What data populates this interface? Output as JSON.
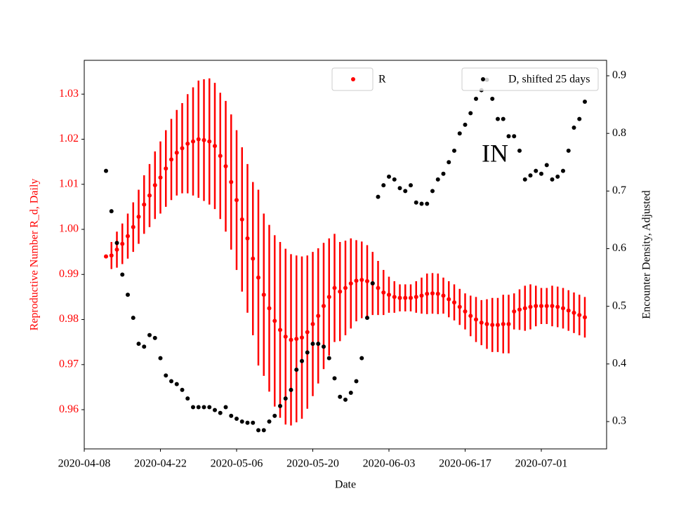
{
  "chart_data": {
    "type": "errorbar-dual-axis",
    "xlabel": "Date",
    "ylabel": "Reproductive Number R_d, Daily",
    "y2label": "Encounter Density, Adjusted",
    "annotation": "IN",
    "x": [
      "2020-04-12",
      "2020-04-13",
      "2020-04-14",
      "2020-04-15",
      "2020-04-16",
      "2020-04-17",
      "2020-04-18",
      "2020-04-19",
      "2020-04-20",
      "2020-04-21",
      "2020-04-22",
      "2020-04-23",
      "2020-04-24",
      "2020-04-25",
      "2020-04-26",
      "2020-04-27",
      "2020-04-28",
      "2020-04-29",
      "2020-04-30",
      "2020-05-01",
      "2020-05-02",
      "2020-05-03",
      "2020-05-04",
      "2020-05-05",
      "2020-05-06",
      "2020-05-07",
      "2020-05-08",
      "2020-05-09",
      "2020-05-10",
      "2020-05-11",
      "2020-05-12",
      "2020-05-13",
      "2020-05-14",
      "2020-05-15",
      "2020-05-16",
      "2020-05-17",
      "2020-05-18",
      "2020-05-19",
      "2020-05-20",
      "2020-05-21",
      "2020-05-22",
      "2020-05-23",
      "2020-05-24",
      "2020-05-25",
      "2020-05-26",
      "2020-05-27",
      "2020-05-28",
      "2020-05-29",
      "2020-05-30",
      "2020-05-31",
      "2020-06-01",
      "2020-06-02",
      "2020-06-03",
      "2020-06-04",
      "2020-06-05",
      "2020-06-06",
      "2020-06-07",
      "2020-06-08",
      "2020-06-09",
      "2020-06-10",
      "2020-06-11",
      "2020-06-12",
      "2020-06-13",
      "2020-06-14",
      "2020-06-15",
      "2020-06-16",
      "2020-06-17",
      "2020-06-18",
      "2020-06-19",
      "2020-06-20",
      "2020-06-21",
      "2020-06-22",
      "2020-06-23",
      "2020-06-24",
      "2020-06-25",
      "2020-06-26",
      "2020-06-27",
      "2020-06-28",
      "2020-06-29",
      "2020-06-30",
      "2020-07-01",
      "2020-07-02",
      "2020-07-03",
      "2020-07-04",
      "2020-07-05",
      "2020-07-06",
      "2020-07-07",
      "2020-07-08",
      "2020-07-09"
    ],
    "xlim": [
      "2020-04-08",
      "2020-07-13"
    ],
    "xticks": [
      "2020-04-08",
      "2020-04-22",
      "2020-05-06",
      "2020-05-20",
      "2020-06-03",
      "2020-06-17",
      "2020-07-01"
    ],
    "ylim": [
      0.9513,
      1.0375
    ],
    "yticks": [
      0.96,
      0.97,
      0.98,
      0.99,
      {
        "value": 1,
        "label": "1.00"
      },
      1.01,
      1.02,
      1.03
    ],
    "y2lim": [
      0.2526,
      0.9268
    ],
    "y2ticks": [
      0.3,
      0.4,
      0.5,
      0.6,
      0.7,
      0.8,
      0.9
    ],
    "ycolor": "#ff0000",
    "series": [
      {
        "name": "R",
        "color": "#ff0000",
        "axis": "y",
        "legend": "upper center",
        "values": [
          0.994,
          0.9942,
          0.9955,
          0.9968,
          0.9985,
          1.0005,
          1.0028,
          1.0055,
          1.0075,
          1.0098,
          1.0115,
          1.0135,
          1.0155,
          1.017,
          1.018,
          1.019,
          1.0195,
          1.02,
          1.0198,
          1.0195,
          1.0185,
          1.0163,
          1.014,
          1.0105,
          1.0065,
          1.0022,
          0.998,
          0.9935,
          0.9893,
          0.9855,
          0.9825,
          0.9797,
          0.9777,
          0.9762,
          0.9755,
          0.9757,
          0.976,
          0.9772,
          0.979,
          0.9808,
          0.983,
          0.985,
          0.987,
          0.9862,
          0.987,
          0.988,
          0.9886,
          0.9888,
          0.9885,
          0.988,
          0.987,
          0.986,
          0.9855,
          0.985,
          0.9848,
          0.9848,
          0.9848,
          0.985,
          0.9853,
          0.9857,
          0.9858,
          0.9857,
          0.9853,
          0.9845,
          0.9838,
          0.9828,
          0.9818,
          0.9808,
          0.98,
          0.9793,
          0.979,
          0.9788,
          0.9788,
          0.979,
          0.979,
          0.9818,
          0.9822,
          0.9825,
          0.9828,
          0.983,
          0.983,
          0.983,
          0.983,
          0.9828,
          0.9825,
          0.982,
          0.9815,
          0.981,
          0.9805
        ],
        "errors": [
          0,
          0.003,
          0.004,
          0.0045,
          0.005,
          0.0055,
          0.006,
          0.0065,
          0.007,
          0.0075,
          0.008,
          0.0085,
          0.009,
          0.0095,
          0.01,
          0.011,
          0.012,
          0.013,
          0.0135,
          0.014,
          0.014,
          0.014,
          0.0145,
          0.015,
          0.0155,
          0.016,
          0.0165,
          0.017,
          0.0195,
          0.018,
          0.0185,
          0.019,
          0.0195,
          0.0195,
          0.019,
          0.0185,
          0.018,
          0.017,
          0.016,
          0.015,
          0.014,
          0.013,
          0.012,
          0.011,
          0.0105,
          0.01,
          0.009,
          0.0085,
          0.008,
          0.007,
          0.006,
          0.005,
          0.004,
          0.0035,
          0.003,
          0.003,
          0.003,
          0.0035,
          0.004,
          0.0045,
          0.0045,
          0.0045,
          0.004,
          0.004,
          0.004,
          0.004,
          0.004,
          0.0045,
          0.005,
          0.005,
          0.0055,
          0.006,
          0.006,
          0.0065,
          0.0065,
          0.004,
          0.0045,
          0.005,
          0.005,
          0.0045,
          0.004,
          0.004,
          0.0045,
          0.0045,
          0.0045,
          0.0045,
          0.0045,
          0.0045,
          0.0045
        ]
      },
      {
        "name": "D, shifted 25 days",
        "color": "#000000",
        "axis": "y2",
        "legend": "upper right",
        "values": [
          0.735,
          0.665,
          0.61,
          0.555,
          0.52,
          0.48,
          0.435,
          0.43,
          0.45,
          0.445,
          0.41,
          0.38,
          0.37,
          0.365,
          0.355,
          0.34,
          0.325,
          0.325,
          0.325,
          0.325,
          0.32,
          0.315,
          0.325,
          0.31,
          0.305,
          0.3,
          0.298,
          0.298,
          0.285,
          0.285,
          0.3,
          0.31,
          0.327,
          0.34,
          0.355,
          0.39,
          0.405,
          0.42,
          0.435,
          0.435,
          0.43,
          0.41,
          0.375,
          0.343,
          0.338,
          0.35,
          0.37,
          0.41,
          0.48,
          0.54,
          0.69,
          0.71,
          0.725,
          0.72,
          0.705,
          0.7,
          0.71,
          0.68,
          0.678,
          0.678,
          0.7,
          0.72,
          0.73,
          0.75,
          0.77,
          0.8,
          0.815,
          0.835,
          0.86,
          0.875,
          0.893,
          0.86,
          0.825,
          0.825,
          0.795,
          0.795,
          0.77,
          0.72,
          0.727,
          0.735,
          0.73,
          0.745,
          0.72,
          0.725,
          0.735,
          0.77,
          0.81,
          0.825,
          0.855
        ]
      }
    ]
  }
}
